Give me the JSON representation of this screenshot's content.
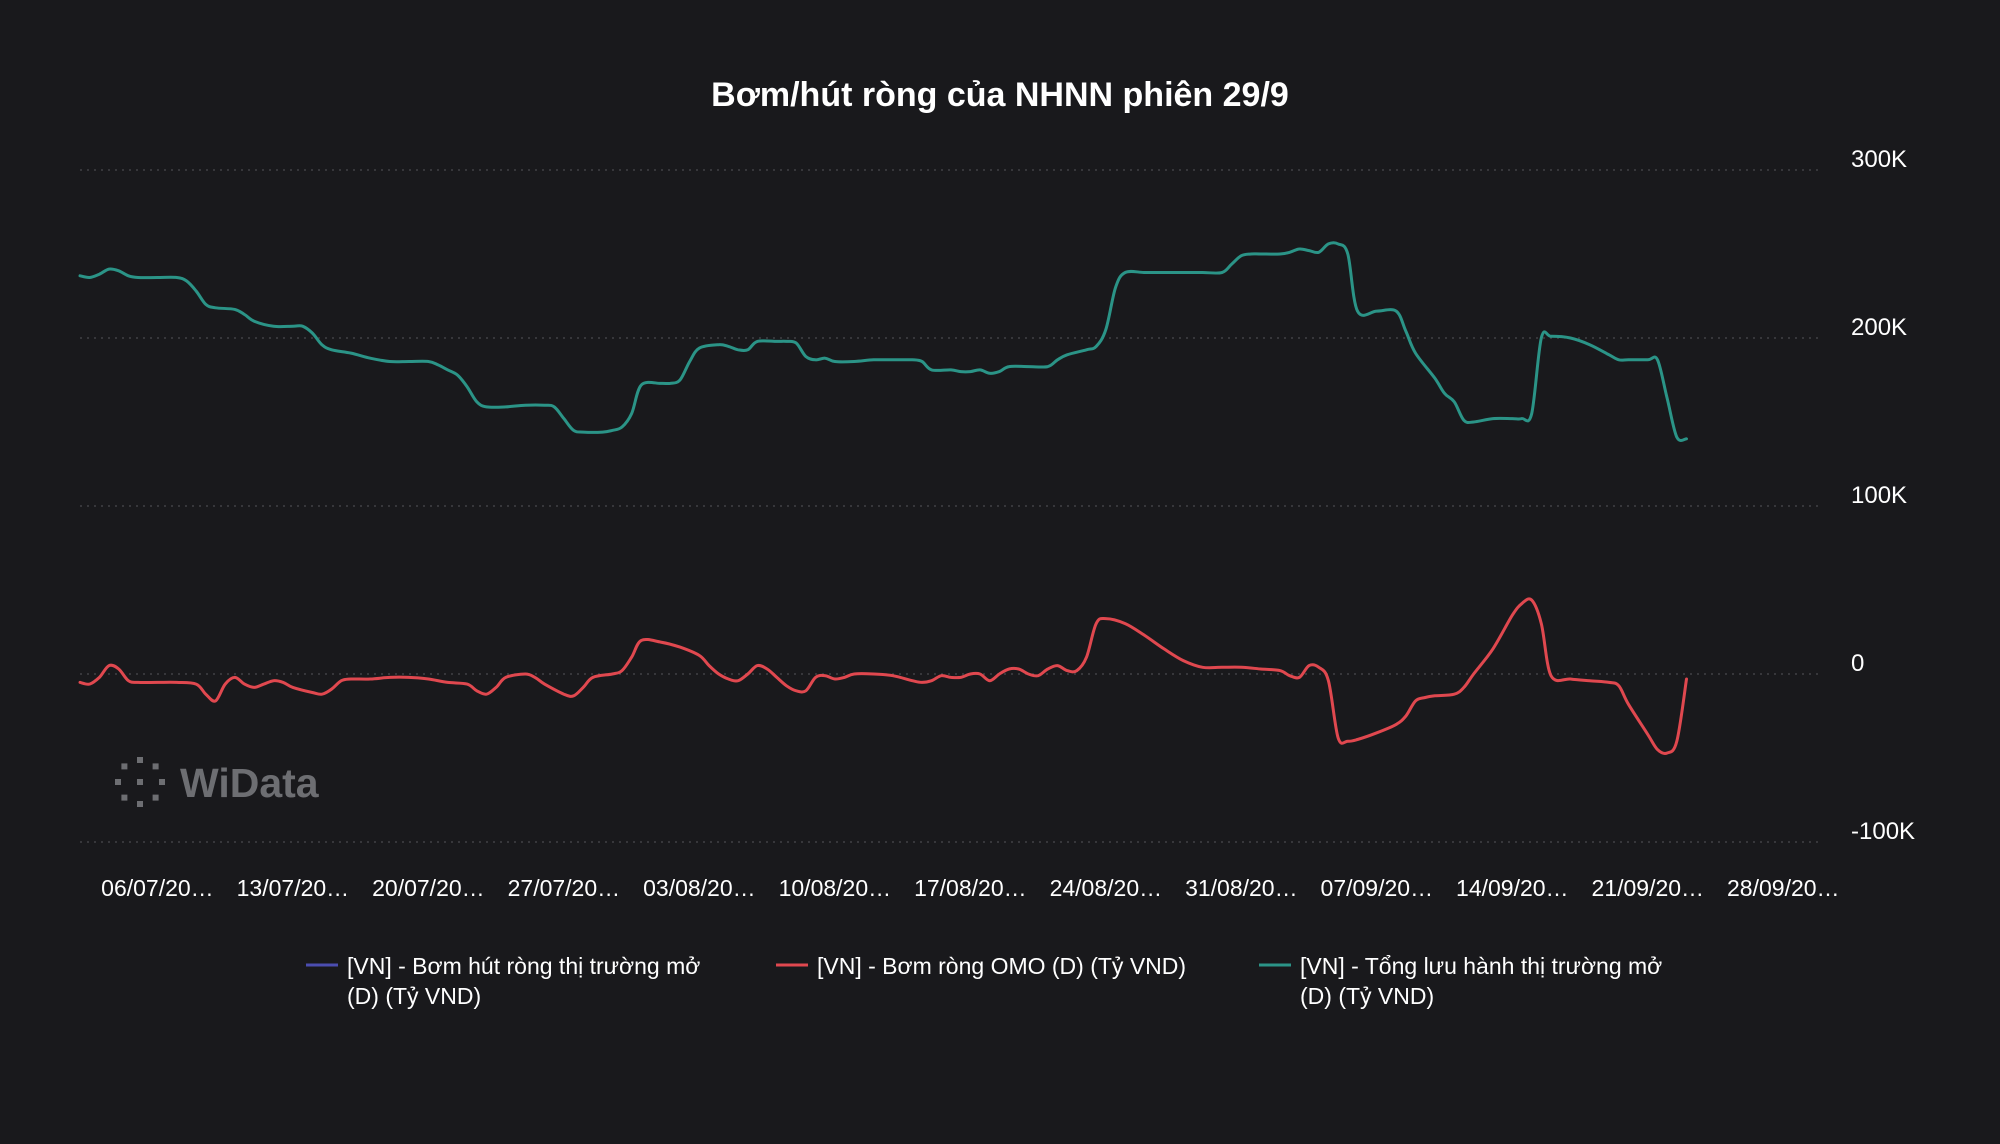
{
  "watermark": {
    "text": "WiData"
  },
  "colors": {
    "background": "#19191c",
    "grid": "#4a4a4e",
    "series": [
      "#4b4db0",
      "#e0484f",
      "#2b9487"
    ],
    "watermark": "#6d6e72"
  },
  "chart_data": {
    "type": "line",
    "title": "Bơm/hút ròng của NHNN phiên 29/9",
    "xlabel": "",
    "ylabel": "",
    "ylim": [
      -100000,
      300000
    ],
    "y_ticks": [
      300000,
      200000,
      100000,
      0,
      -100000
    ],
    "y_tick_labels": [
      "300K",
      "200K",
      "100K",
      "0",
      "-100K"
    ],
    "y_axis_position": "right",
    "grid": true,
    "grid_style": "dotted-horizontal",
    "legend_position": "bottom",
    "x_range": [
      0,
      90
    ],
    "x_tick_positions": [
      4,
      11,
      18,
      25,
      32,
      39,
      46,
      53,
      60,
      67,
      74,
      81,
      88
    ],
    "x_tick_labels": [
      "06/07/20…",
      "13/07/20…",
      "20/07/20…",
      "27/07/20…",
      "03/08/20…",
      "10/08/20…",
      "17/08/20…",
      "24/08/20…",
      "31/08/20…",
      "07/09/20…",
      "14/09/20…",
      "21/09/20…",
      "28/09/20…"
    ],
    "series": [
      {
        "name": "[VN] - Bơm hút ròng thị trường mở (D) (Tỷ VND)",
        "legend_lines": [
          "[VN] - Bơm hút ròng thị trường mở",
          "(D) (Tỷ VND)"
        ],
        "color": "#4b4db0",
        "points": []
      },
      {
        "name": "[VN] - Bơm ròng OMO (D) (Tỷ VND)",
        "legend_lines": [
          "[VN] - Bơm ròng OMO (D) (Tỷ VND)"
        ],
        "color": "#e0484f",
        "points": [
          [
            0,
            -5000
          ],
          [
            0.5,
            -6000
          ],
          [
            1,
            -2000
          ],
          [
            1.5,
            5000
          ],
          [
            2,
            3000
          ],
          [
            2.5,
            -4000
          ],
          [
            3,
            -5000
          ],
          [
            4,
            -5000
          ],
          [
            5,
            -5000
          ],
          [
            6,
            -6000
          ],
          [
            6.5,
            -12000
          ],
          [
            7,
            -16000
          ],
          [
            7.5,
            -6000
          ],
          [
            8,
            -2000
          ],
          [
            8.5,
            -6000
          ],
          [
            9,
            -8000
          ],
          [
            9.5,
            -6000
          ],
          [
            10,
            -4000
          ],
          [
            10.5,
            -5000
          ],
          [
            11,
            -8000
          ],
          [
            12,
            -11000
          ],
          [
            12.5,
            -12000
          ],
          [
            13,
            -9000
          ],
          [
            13.5,
            -4000
          ],
          [
            14,
            -3000
          ],
          [
            15,
            -3000
          ],
          [
            16,
            -2000
          ],
          [
            17,
            -2000
          ],
          [
            18,
            -3000
          ],
          [
            19,
            -5000
          ],
          [
            20,
            -6000
          ],
          [
            20.5,
            -10000
          ],
          [
            21,
            -12000
          ],
          [
            21.5,
            -8000
          ],
          [
            22,
            -2000
          ],
          [
            23,
            0
          ],
          [
            23.5,
            -2000
          ],
          [
            24,
            -6000
          ],
          [
            25,
            -12000
          ],
          [
            25.5,
            -13000
          ],
          [
            26,
            -8000
          ],
          [
            26.5,
            -2000
          ],
          [
            27.5,
            0
          ],
          [
            28,
            2000
          ],
          [
            28.5,
            10000
          ],
          [
            29,
            20000
          ],
          [
            30,
            19000
          ],
          [
            31,
            16000
          ],
          [
            32,
            11000
          ],
          [
            32.5,
            5000
          ],
          [
            33,
            0
          ],
          [
            33.5,
            -3000
          ],
          [
            34,
            -4000
          ],
          [
            34.5,
            0
          ],
          [
            35,
            5000
          ],
          [
            35.5,
            3000
          ],
          [
            36,
            -2000
          ],
          [
            36.5,
            -7000
          ],
          [
            37,
            -10000
          ],
          [
            37.5,
            -10000
          ],
          [
            38,
            -2000
          ],
          [
            38.5,
            -1000
          ],
          [
            39,
            -3000
          ],
          [
            39.5,
            -2000
          ],
          [
            40,
            0
          ],
          [
            41,
            0
          ],
          [
            42,
            -1000
          ],
          [
            43,
            -4000
          ],
          [
            43.5,
            -5000
          ],
          [
            44,
            -4000
          ],
          [
            44.5,
            -1000
          ],
          [
            45,
            -2000
          ],
          [
            45.5,
            -2000
          ],
          [
            46,
            0
          ],
          [
            46.5,
            0
          ],
          [
            47,
            -4000
          ],
          [
            47.5,
            0
          ],
          [
            48,
            3000
          ],
          [
            48.5,
            3000
          ],
          [
            49,
            0
          ],
          [
            49.5,
            -1000
          ],
          [
            50,
            3000
          ],
          [
            50.5,
            5000
          ],
          [
            51,
            2000
          ],
          [
            51.5,
            2000
          ],
          [
            52,
            10000
          ],
          [
            52.5,
            30000
          ],
          [
            53,
            33000
          ],
          [
            54,
            30000
          ],
          [
            55,
            23000
          ],
          [
            56,
            15000
          ],
          [
            57,
            8000
          ],
          [
            58,
            4000
          ],
          [
            59,
            4000
          ],
          [
            60,
            4000
          ],
          [
            61,
            3000
          ],
          [
            62,
            2000
          ],
          [
            62.5,
            -1000
          ],
          [
            63,
            -2000
          ],
          [
            63.5,
            5000
          ],
          [
            64,
            4000
          ],
          [
            64.5,
            -4000
          ],
          [
            65,
            -38000
          ],
          [
            65.5,
            -40000
          ],
          [
            66,
            -39000
          ],
          [
            67,
            -35000
          ],
          [
            68,
            -30000
          ],
          [
            68.5,
            -25000
          ],
          [
            69,
            -16000
          ],
          [
            69.5,
            -14000
          ],
          [
            70,
            -13000
          ],
          [
            71,
            -12000
          ],
          [
            71.5,
            -8000
          ],
          [
            72,
            0
          ],
          [
            73,
            15000
          ],
          [
            74,
            35000
          ],
          [
            74.5,
            42000
          ],
          [
            75,
            44000
          ],
          [
            75.5,
            30000
          ],
          [
            76,
            -1000
          ],
          [
            77,
            -3000
          ],
          [
            78,
            -4000
          ],
          [
            79,
            -5000
          ],
          [
            79.5,
            -7000
          ],
          [
            80,
            -18000
          ],
          [
            81,
            -36000
          ],
          [
            81.5,
            -45000
          ],
          [
            82,
            -47000
          ],
          [
            82.5,
            -40000
          ],
          [
            83,
            -3000
          ]
        ]
      },
      {
        "name": "[VN] - Tổng lưu hành thị trường mở (D) (Tỷ VND)",
        "legend_lines": [
          "[VN] - Tổng lưu hành thị trường mở",
          " (D) (Tỷ VND)"
        ],
        "color": "#2b9487",
        "points": [
          [
            0,
            237000
          ],
          [
            0.5,
            236000
          ],
          [
            1,
            238000
          ],
          [
            1.5,
            241000
          ],
          [
            2,
            240000
          ],
          [
            2.5,
            237000
          ],
          [
            3,
            236000
          ],
          [
            4,
            236000
          ],
          [
            5,
            236000
          ],
          [
            5.5,
            234000
          ],
          [
            6,
            228000
          ],
          [
            6.5,
            220000
          ],
          [
            7,
            218000
          ],
          [
            8,
            217000
          ],
          [
            8.5,
            214000
          ],
          [
            9,
            210000
          ],
          [
            10,
            207000
          ],
          [
            11,
            207000
          ],
          [
            11.5,
            207000
          ],
          [
            12,
            203000
          ],
          [
            12.5,
            196000
          ],
          [
            13,
            193000
          ],
          [
            14,
            191000
          ],
          [
            15,
            188000
          ],
          [
            16,
            186000
          ],
          [
            17,
            186000
          ],
          [
            18,
            186000
          ],
          [
            18.5,
            184000
          ],
          [
            19,
            181000
          ],
          [
            19.5,
            178000
          ],
          [
            20,
            171000
          ],
          [
            20.5,
            162000
          ],
          [
            21,
            159000
          ],
          [
            22,
            159000
          ],
          [
            23,
            160000
          ],
          [
            24,
            160000
          ],
          [
            24.5,
            159000
          ],
          [
            25,
            152000
          ],
          [
            25.5,
            145000
          ],
          [
            26,
            144000
          ],
          [
            27,
            144000
          ],
          [
            27.5,
            145000
          ],
          [
            28,
            147000
          ],
          [
            28.5,
            155000
          ],
          [
            29,
            172000
          ],
          [
            30,
            173000
          ],
          [
            30.5,
            173000
          ],
          [
            31,
            175000
          ],
          [
            31.5,
            186000
          ],
          [
            32,
            194000
          ],
          [
            33,
            196000
          ],
          [
            33.5,
            195000
          ],
          [
            34,
            193000
          ],
          [
            34.5,
            193000
          ],
          [
            35,
            198000
          ],
          [
            36,
            198000
          ],
          [
            36.5,
            198000
          ],
          [
            37,
            197000
          ],
          [
            37.5,
            189000
          ],
          [
            38,
            187000
          ],
          [
            38.5,
            188000
          ],
          [
            39,
            186000
          ],
          [
            40,
            186000
          ],
          [
            41,
            187000
          ],
          [
            42,
            187000
          ],
          [
            43,
            187000
          ],
          [
            43.5,
            186000
          ],
          [
            44,
            181000
          ],
          [
            45,
            181000
          ],
          [
            45.5,
            180000
          ],
          [
            46,
            180000
          ],
          [
            46.5,
            181000
          ],
          [
            47,
            179000
          ],
          [
            47.5,
            180000
          ],
          [
            48,
            183000
          ],
          [
            49,
            183000
          ],
          [
            50,
            183000
          ],
          [
            50.5,
            187000
          ],
          [
            51,
            190000
          ],
          [
            52,
            193000
          ],
          [
            52.5,
            195000
          ],
          [
            53,
            205000
          ],
          [
            53.5,
            230000
          ],
          [
            54,
            239000
          ],
          [
            55,
            239000
          ],
          [
            56,
            239000
          ],
          [
            57,
            239000
          ],
          [
            58,
            239000
          ],
          [
            59,
            239000
          ],
          [
            59.5,
            244000
          ],
          [
            60,
            249000
          ],
          [
            60.5,
            250000
          ],
          [
            61,
            250000
          ],
          [
            62,
            250000
          ],
          [
            62.5,
            251000
          ],
          [
            63,
            253000
          ],
          [
            63.5,
            252000
          ],
          [
            64,
            251000
          ],
          [
            64.5,
            256000
          ],
          [
            65,
            256000
          ],
          [
            65.5,
            250000
          ],
          [
            66,
            216000
          ],
          [
            67,
            216000
          ],
          [
            68,
            216000
          ],
          [
            68.5,
            204000
          ],
          [
            69,
            191000
          ],
          [
            70,
            176000
          ],
          [
            70.5,
            167000
          ],
          [
            71,
            162000
          ],
          [
            71.5,
            151000
          ],
          [
            72,
            150000
          ],
          [
            73,
            152000
          ],
          [
            74,
            152000
          ],
          [
            74.5,
            152000
          ],
          [
            75,
            155000
          ],
          [
            75.5,
            200000
          ],
          [
            76,
            201000
          ],
          [
            77,
            200000
          ],
          [
            78,
            196000
          ],
          [
            79,
            190000
          ],
          [
            79.5,
            187000
          ],
          [
            80,
            187000
          ],
          [
            81,
            187000
          ],
          [
            81.5,
            187000
          ],
          [
            82,
            164000
          ],
          [
            82.5,
            141000
          ],
          [
            83,
            140000
          ]
        ]
      }
    ]
  }
}
